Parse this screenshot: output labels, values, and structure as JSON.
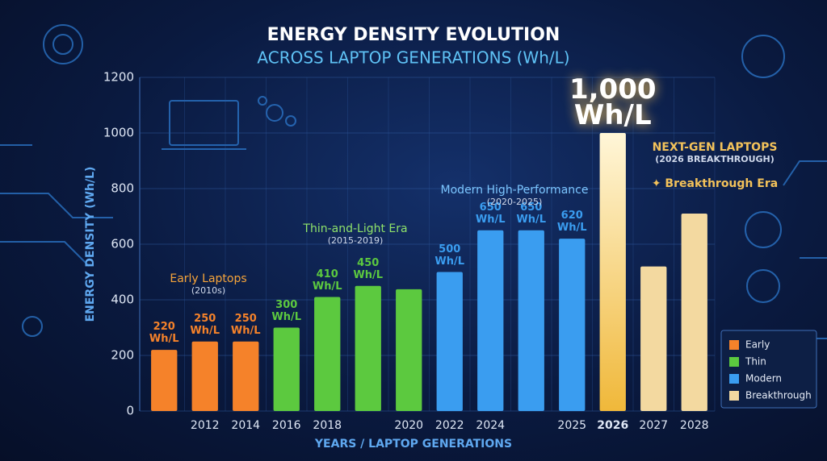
{
  "chart_data": {
    "type": "bar",
    "title": "ENERGY DENSITY EVOLUTION",
    "subtitle": "ACROSS LAPTOP GENERATIONS (Wh/L)",
    "y_label": "ENERGY DENSITY (Wh/L)",
    "x_label": "YEARS / LAPTOP GENERATIONS",
    "categories": [
      null,
      "2012",
      "2014",
      "2016",
      "2018",
      null,
      "2020",
      "2022",
      "2024",
      null,
      "2025",
      "2026",
      "2027",
      "2028"
    ],
    "series": [
      {
        "name": "Early",
        "color": "#f5822a",
        "values": [
          220,
          250,
          250,
          null,
          null,
          null,
          null,
          null,
          null,
          null,
          null,
          null,
          null,
          null
        ],
        "value_labels": [
          "220 Wh/L",
          "250 Wh/L",
          "250 Wh/L",
          null,
          null,
          null,
          null,
          null,
          null,
          null,
          null,
          null,
          null,
          null
        ]
      },
      {
        "name": "Thin",
        "color": "#5cc93f",
        "values": [
          null,
          null,
          null,
          300,
          410,
          450,
          438,
          null,
          null,
          null,
          null,
          null,
          null,
          null
        ],
        "value_labels": [
          null,
          null,
          null,
          "300 Wh/L",
          "410 Wh/L",
          "450 Wh/L",
          null,
          null,
          null,
          null,
          null,
          null,
          null,
          null
        ]
      },
      {
        "name": "Modern",
        "color": "#3a9df0",
        "values": [
          null,
          null,
          null,
          null,
          null,
          null,
          null,
          500,
          650,
          650,
          620,
          null,
          null,
          null
        ],
        "value_labels": [
          null,
          null,
          null,
          null,
          null,
          null,
          null,
          "500 Wh/L",
          "650 Wh/L",
          "650 Wh/L",
          "620 Wh/L",
          null,
          null,
          null
        ]
      },
      {
        "name": "Breakthrough",
        "color": "#f3d9a0",
        "values": [
          null,
          null,
          null,
          null,
          null,
          null,
          null,
          null,
          null,
          null,
          null,
          1000,
          520,
          710
        ],
        "value_labels": [
          null,
          null,
          null,
          null,
          null,
          null,
          null,
          null,
          null,
          null,
          null,
          "1,000 Wh/L",
          null,
          null
        ]
      }
    ],
    "annotations": [
      {
        "text": "Early Laptops",
        "sub": "(2010s)",
        "color": "#f6a43a"
      },
      {
        "text": "Thin-and-Light Era",
        "sub": "(2015-2019)",
        "color": "#8fe36a"
      },
      {
        "text": "Modern High-Performance",
        "sub": "(2020-2025)",
        "color": "#7cc6ff"
      },
      {
        "text": "NEXT-GEN LAPTOPS",
        "sub": "(2026 BREAKTHROUGH)",
        "color": "#f3c25a"
      },
      {
        "text": "✦ Breakthrough Era",
        "color": "#f3c25a"
      }
    ],
    "ylim": [
      0,
      1200
    ],
    "yticks": [
      0,
      200,
      400,
      600,
      800,
      1000,
      1200
    ],
    "grid": true,
    "legend": "bottom-right"
  }
}
